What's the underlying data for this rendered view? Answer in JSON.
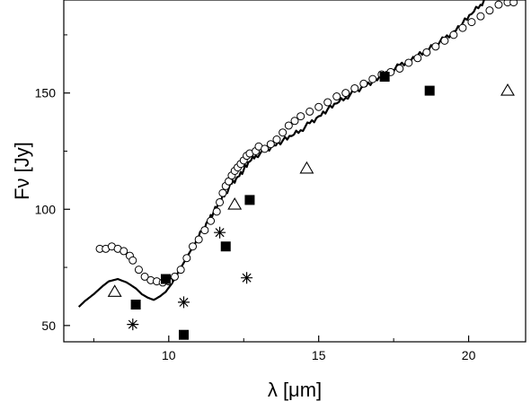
{
  "chart_data": {
    "type": "scatter",
    "title": "",
    "xlabel": "λ [μm]",
    "ylabel": "Fν [Jy]",
    "xlim": [
      6.5,
      21.9
    ],
    "ylim": [
      43,
      190
    ],
    "x_ticks": [
      10,
      15,
      20
    ],
    "y_ticks": [
      50,
      100,
      150
    ],
    "x_tick_labels": [
      "10",
      "15",
      "20"
    ],
    "y_tick_labels": [
      "50",
      "100",
      "150"
    ],
    "grid": false,
    "legend": "none",
    "series": [
      {
        "marker": "line",
        "color": "#000000",
        "points": [
          [
            7.0,
            58
          ],
          [
            7.2,
            60.5
          ],
          [
            7.5,
            63.5
          ],
          [
            7.8,
            67
          ],
          [
            8.0,
            69
          ],
          [
            8.3,
            70
          ],
          [
            8.6,
            68.5
          ],
          [
            8.9,
            66
          ],
          [
            9.1,
            63.5
          ],
          [
            9.3,
            62
          ],
          [
            9.5,
            61
          ],
          [
            9.7,
            62.5
          ],
          [
            9.9,
            64.5
          ],
          [
            10.1,
            68
          ],
          [
            10.3,
            72.5
          ],
          [
            10.5,
            77
          ],
          [
            10.7,
            81.5
          ],
          [
            10.9,
            86
          ],
          [
            11.1,
            90.5
          ],
          [
            11.3,
            95
          ],
          [
            11.5,
            99
          ],
          [
            11.7,
            103
          ],
          [
            11.9,
            107
          ],
          [
            12.1,
            111
          ],
          [
            12.3,
            114
          ],
          [
            12.5,
            117
          ],
          [
            12.7,
            120.5
          ],
          [
            12.9,
            123
          ],
          [
            13.2,
            125
          ],
          [
            13.5,
            127.5
          ],
          [
            13.8,
            129.5
          ],
          [
            14.1,
            131.5
          ],
          [
            14.4,
            134
          ],
          [
            14.7,
            137
          ],
          [
            15.0,
            140
          ],
          [
            15.3,
            143
          ],
          [
            15.6,
            145.5
          ],
          [
            15.9,
            148
          ],
          [
            16.2,
            150.5
          ],
          [
            16.5,
            153
          ],
          [
            16.8,
            155
          ],
          [
            17.1,
            157
          ],
          [
            17.4,
            159
          ],
          [
            17.7,
            162
          ],
          [
            18.0,
            164
          ],
          [
            18.3,
            166
          ],
          [
            18.6,
            168
          ],
          [
            18.9,
            171
          ],
          [
            19.2,
            173.5
          ],
          [
            19.5,
            176.5
          ],
          [
            19.8,
            180
          ],
          [
            20.1,
            184
          ],
          [
            20.4,
            188
          ],
          [
            20.6,
            191
          ]
        ]
      },
      {
        "marker": "open-circle",
        "color": "#000000",
        "points": [
          [
            7.7,
            83
          ],
          [
            7.9,
            83
          ],
          [
            8.1,
            84
          ],
          [
            8.3,
            83
          ],
          [
            8.5,
            82
          ],
          [
            8.7,
            80
          ],
          [
            8.8,
            78
          ],
          [
            9.0,
            74
          ],
          [
            9.2,
            71
          ],
          [
            9.4,
            69.5
          ],
          [
            9.6,
            69
          ],
          [
            9.8,
            68.5
          ],
          [
            10.0,
            69
          ],
          [
            10.2,
            71
          ],
          [
            10.4,
            74
          ],
          [
            10.6,
            79
          ],
          [
            10.8,
            84
          ],
          [
            11.0,
            87
          ],
          [
            11.2,
            91
          ],
          [
            11.4,
            95
          ],
          [
            11.6,
            99
          ],
          [
            11.7,
            103
          ],
          [
            11.8,
            107
          ],
          [
            11.9,
            110
          ],
          [
            12.0,
            112
          ],
          [
            12.1,
            114.5
          ],
          [
            12.2,
            116.5
          ],
          [
            12.3,
            118
          ],
          [
            12.4,
            119.5
          ],
          [
            12.5,
            121
          ],
          [
            12.6,
            123
          ],
          [
            12.7,
            124
          ],
          [
            12.9,
            125
          ],
          [
            13.0,
            127
          ],
          [
            13.2,
            126
          ],
          [
            13.4,
            128
          ],
          [
            13.6,
            130
          ],
          [
            13.8,
            133
          ],
          [
            14.0,
            136
          ],
          [
            14.2,
            138
          ],
          [
            14.4,
            140
          ],
          [
            14.7,
            142
          ],
          [
            15.0,
            144
          ],
          [
            15.3,
            146
          ],
          [
            15.6,
            148.5
          ],
          [
            15.9,
            150
          ],
          [
            16.2,
            152
          ],
          [
            16.5,
            154
          ],
          [
            16.8,
            156
          ],
          [
            17.1,
            158
          ],
          [
            17.4,
            159
          ],
          [
            17.7,
            160.5
          ],
          [
            18.0,
            163
          ],
          [
            18.3,
            165
          ],
          [
            18.6,
            167.5
          ],
          [
            18.9,
            170
          ],
          [
            19.2,
            172.5
          ],
          [
            19.5,
            175
          ],
          [
            19.8,
            178
          ],
          [
            20.1,
            180.5
          ],
          [
            20.4,
            183
          ],
          [
            20.7,
            185.5
          ],
          [
            21.0,
            188
          ],
          [
            21.3,
            189
          ],
          [
            21.5,
            189
          ]
        ]
      },
      {
        "marker": "filled-square",
        "color": "#000000",
        "points": [
          [
            8.9,
            59
          ],
          [
            9.9,
            70
          ],
          [
            10.5,
            46
          ],
          [
            11.9,
            84
          ],
          [
            12.7,
            104
          ],
          [
            17.2,
            157
          ],
          [
            18.7,
            151
          ]
        ]
      },
      {
        "marker": "open-triangle",
        "color": "#000000",
        "points": [
          [
            8.2,
            64.5
          ],
          [
            12.2,
            102
          ],
          [
            14.6,
            117.5
          ],
          [
            21.3,
            151
          ]
        ]
      },
      {
        "marker": "asterisk",
        "color": "#000000",
        "points": [
          [
            8.8,
            50.5
          ],
          [
            10.5,
            60
          ],
          [
            11.7,
            90
          ],
          [
            12.6,
            70.5
          ]
        ]
      }
    ]
  }
}
